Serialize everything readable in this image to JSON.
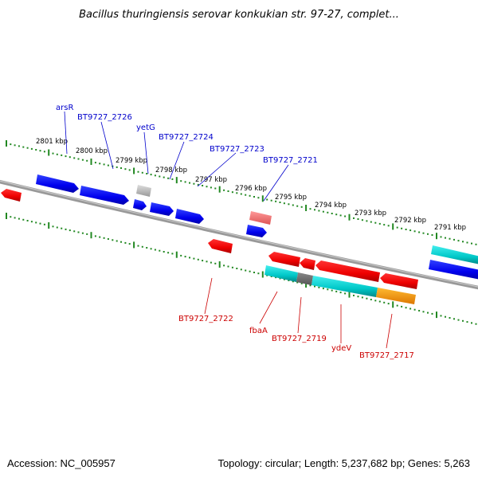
{
  "title": "Bacillus thuringiensis serovar konkukian str. 97-27, complet...",
  "footer": {
    "accession": "Accession: NC_005957",
    "topology": "Topology: circular; Length: 5,237,682 bp; Genes: 5,263"
  },
  "scale_labels": [
    "2801 kbp",
    "2800 kbp",
    "2799 kbp",
    "2798 kbp",
    "2797 kbp",
    "2796 kbp",
    "2795 kbp",
    "2794 kbp",
    "2793 kbp",
    "2792 kbp",
    "2791 kbp"
  ],
  "top_labels": [
    "arsR",
    "BT9727_2726",
    "yetG",
    "BT9727_2724",
    "BT9727_2723",
    "BT9727_2721"
  ],
  "bottom_labels": [
    "BT9727_2722",
    "fbaA",
    "BT9727_2719",
    "ydeV",
    "BT9727_2717"
  ],
  "colors": {
    "forward_gene": "#0000ee",
    "reverse_gene": "#ee0000",
    "rna": "#00c8c8",
    "pseudo": "#aaaaaa",
    "highlight": "#ff9900",
    "backbone": "#888888",
    "scale": "#228822",
    "label_forward": "#0000cc",
    "label_reverse": "#cc0000"
  }
}
